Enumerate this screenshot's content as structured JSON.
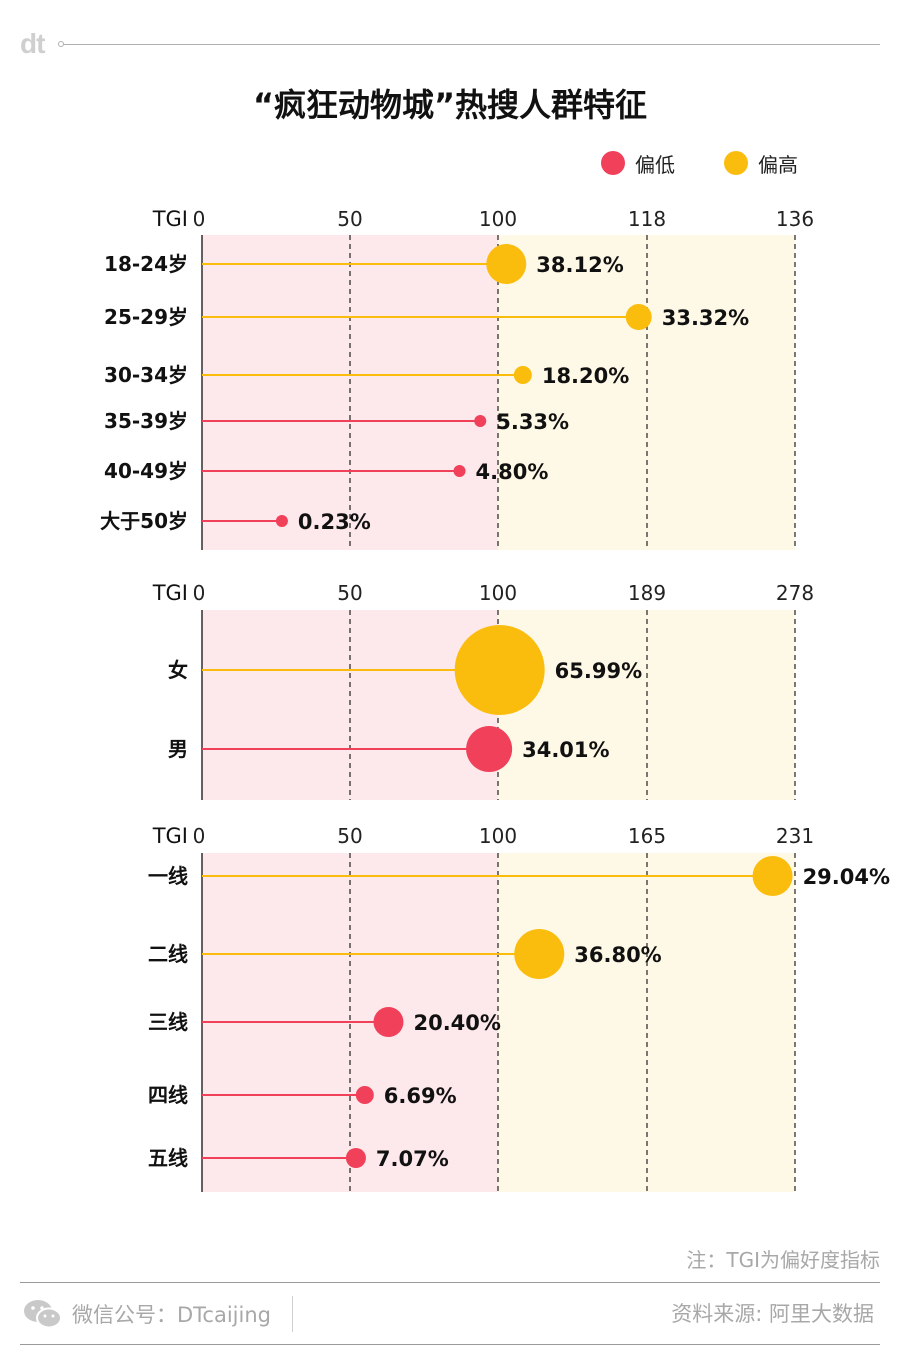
{
  "brand": "dt",
  "title": "“疯狂动物城”热搜人群特征",
  "legend": [
    {
      "label": "偏低",
      "color": "#f0405a"
    },
    {
      "label": "偏高",
      "color": "#fbbd0d"
    }
  ],
  "colors": {
    "low": "#f0405a",
    "high": "#fbbd0d",
    "low_bg": "#fde8eb",
    "high_bg": "#fef8e6"
  },
  "chart_data": [
    {
      "type": "scatter",
      "name": "age",
      "axis_label": "TGI",
      "ticks": [
        "0",
        "50",
        "100",
        "118",
        "136"
      ],
      "baseline": 100,
      "categories": [
        "18-24岁",
        "25-29岁",
        "30-34岁",
        "35-39岁",
        "40-49岁",
        "大于50岁"
      ],
      "tgi": [
        101,
        117,
        103,
        94,
        87,
        27
      ],
      "values": [
        38.12,
        33.32,
        18.2,
        5.33,
        4.8,
        0.23
      ],
      "labels": [
        "38.12%",
        "33.32%",
        "18.20%",
        "5.33%",
        "4.80%",
        "0.23%"
      ],
      "level": [
        "high",
        "high",
        "high",
        "low",
        "low",
        "low"
      ]
    },
    {
      "type": "scatter",
      "name": "gender",
      "axis_label": "TGI",
      "ticks": [
        "0",
        "50",
        "100",
        "189",
        "278"
      ],
      "baseline": 100,
      "categories": [
        "女",
        "男"
      ],
      "tgi": [
        101,
        97
      ],
      "values": [
        65.99,
        34.01
      ],
      "labels": [
        "65.99%",
        "34.01%"
      ],
      "level": [
        "high",
        "low"
      ]
    },
    {
      "type": "scatter",
      "name": "city-tier",
      "axis_label": "TGI",
      "ticks": [
        "0",
        "50",
        "100",
        "165",
        "231"
      ],
      "baseline": 100,
      "categories": [
        "一线",
        "二线",
        "三线",
        "四线",
        "五线"
      ],
      "tgi": [
        221,
        118,
        63,
        55,
        52
      ],
      "values": [
        29.04,
        36.8,
        20.4,
        6.69,
        7.07
      ],
      "labels": [
        "29.04%",
        "36.80%",
        "20.40%",
        "6.69%",
        "7.07%"
      ],
      "level": [
        "high",
        "high",
        "low",
        "low",
        "low"
      ]
    }
  ],
  "note": "注：TGI为偏好度指标",
  "footer": {
    "wechat": "微信公号：DTcaijing",
    "source": "资料来源: 阿里大数据"
  }
}
